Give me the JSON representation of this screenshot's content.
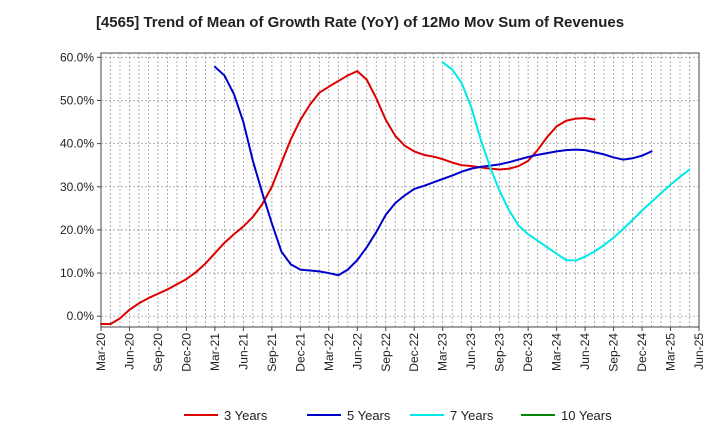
{
  "chart_data": {
    "type": "line",
    "title": "[4565]  Trend of Mean of Growth Rate (YoY) of 12Mo Mov Sum of Revenues",
    "xlabel": "",
    "ylabel": "",
    "x_labels": [
      "Mar-20",
      "Jun-20",
      "Sep-20",
      "Dec-20",
      "Mar-21",
      "Jun-21",
      "Sep-21",
      "Dec-21",
      "Mar-22",
      "Jun-22",
      "Sep-22",
      "Dec-22",
      "Mar-23",
      "Jun-23",
      "Sep-23",
      "Dec-23",
      "Mar-24",
      "Jun-24",
      "Sep-24",
      "Dec-24",
      "Mar-25",
      "Jun-25"
    ],
    "y_ticks": [
      "0.0%",
      "10.0%",
      "20.0%",
      "30.0%",
      "40.0%",
      "50.0%",
      "60.0%"
    ],
    "ylim": [
      -2.5,
      61
    ],
    "grid": true,
    "legend_position": "bottom",
    "series": [
      {
        "name": "3 Years",
        "color": "#dd0000",
        "start_index": 0,
        "values": [
          -1.8,
          -1.8,
          -0.5,
          1.5,
          3.0,
          4.2,
          5.2,
          6.2,
          7.4,
          8.6,
          10.2,
          12.2,
          14.6,
          17.0,
          19.0,
          20.8,
          23.0,
          26.0,
          30.0,
          35.5,
          41.0,
          45.5,
          49.0,
          51.8,
          53.2,
          54.5,
          55.8,
          56.8,
          54.8,
          50.5,
          45.5,
          41.8,
          39.5,
          38.2,
          37.4,
          37.0,
          36.4,
          35.6,
          35.0,
          34.8,
          34.5,
          34.2,
          34.0,
          34.2,
          34.8,
          36.0,
          38.5,
          41.5,
          44.0,
          45.3,
          45.8,
          45.9,
          45.6
        ]
      },
      {
        "name": "5 Years",
        "color": "#0000cc",
        "start_index": 12,
        "values": [
          57.8,
          55.8,
          51.5,
          45.0,
          36.0,
          28.5,
          21.5,
          15.0,
          12.0,
          10.8,
          10.6,
          10.4,
          10.0,
          9.5,
          10.8,
          13.0,
          16.0,
          19.5,
          23.5,
          26.2,
          28.0,
          29.5,
          30.2,
          31.0,
          31.8,
          32.6,
          33.5,
          34.2,
          34.6,
          34.9,
          35.2,
          35.7,
          36.3,
          36.9,
          37.4,
          37.8,
          38.2,
          38.5,
          38.6,
          38.5,
          38.0,
          37.5,
          36.8,
          36.3,
          36.6,
          37.2,
          38.2
        ]
      },
      {
        "name": "7 Years",
        "color": "#00e8e8",
        "start_index": 36,
        "values": [
          58.8,
          57.2,
          54.0,
          48.5,
          41.0,
          34.5,
          29.0,
          24.5,
          21.0,
          19.0,
          17.5,
          16.0,
          14.5,
          13.0,
          12.9,
          13.8,
          15.0,
          16.5,
          18.2,
          20.2,
          22.3,
          24.5,
          26.5,
          28.5,
          30.5,
          32.3,
          34.0
        ]
      },
      {
        "name": "10 Years",
        "color": "#008800",
        "start_index": 0,
        "values": []
      }
    ]
  }
}
